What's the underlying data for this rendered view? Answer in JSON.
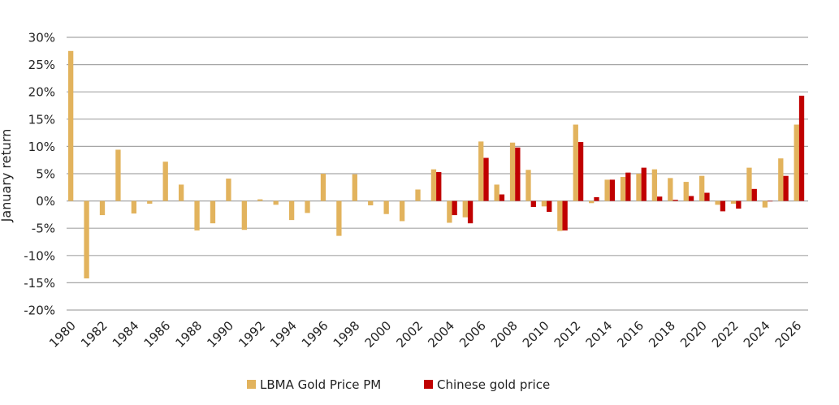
{
  "chart_data": {
    "type": "bar",
    "title": "",
    "xlabel": "",
    "ylabel": "January return",
    "ylim": [
      -20,
      30
    ],
    "y_tick_values": [
      -20,
      -15,
      -10,
      -5,
      0,
      5,
      10,
      15,
      20,
      25,
      30
    ],
    "y_tick_labels": [
      "-20%",
      "-15%",
      "-10%",
      "-5%",
      "0%",
      "5%",
      "10%",
      "15%",
      "20%",
      "25%",
      "30%"
    ],
    "grid": true,
    "legend_position": "bottom-center",
    "x_tick_labels": [
      "1980",
      "1982",
      "1984",
      "1986",
      "1988",
      "1990",
      "1992",
      "1994",
      "1996",
      "1998",
      "2000",
      "2002",
      "2004",
      "2006",
      "2008",
      "2010",
      "2012",
      "2014",
      "2016",
      "2018",
      "2020",
      "2022",
      "2024",
      "2026"
    ],
    "categories": [
      "1980",
      "1981",
      "1982",
      "1983",
      "1984",
      "1985",
      "1986",
      "1987",
      "1988",
      "1989",
      "1990",
      "1991",
      "1992",
      "1993",
      "1994",
      "1995",
      "1996",
      "1997",
      "1998",
      "1999",
      "2000",
      "2001",
      "2002",
      "2003",
      "2004",
      "2005",
      "2006",
      "2007",
      "2008",
      "2009",
      "2010",
      "2011",
      "2012",
      "2013",
      "2014",
      "2015",
      "2016",
      "2017",
      "2018",
      "2019",
      "2020",
      "2021",
      "2022",
      "2023",
      "2024",
      "2025",
      "2026"
    ],
    "series": [
      {
        "name": "LBMA Gold Price PM",
        "color": "#E2B35D",
        "values": [
          27.5,
          -14.2,
          -2.6,
          9.4,
          -2.3,
          -0.5,
          7.2,
          3.0,
          -5.4,
          -4.1,
          4.1,
          -5.3,
          0.3,
          -0.7,
          -3.5,
          -2.2,
          5.0,
          -6.4,
          4.9,
          -0.8,
          -2.4,
          -3.7,
          2.1,
          5.8,
          -4.0,
          -3.0,
          10.9,
          3.0,
          10.7,
          5.7,
          -1.0,
          -5.5,
          14.0,
          -0.4,
          3.9,
          4.4,
          5.0,
          5.8,
          4.2,
          3.5,
          4.6,
          -0.7,
          -0.5,
          6.1,
          -1.2,
          7.8,
          14.0
        ]
      },
      {
        "name": "Chinese gold price",
        "color": "#C00000",
        "values": [
          null,
          null,
          null,
          null,
          null,
          null,
          null,
          null,
          null,
          null,
          null,
          null,
          null,
          null,
          null,
          null,
          null,
          null,
          null,
          null,
          null,
          null,
          null,
          5.3,
          -2.6,
          -4.1,
          7.9,
          1.2,
          9.8,
          -1.1,
          -2.0,
          -5.4,
          10.8,
          0.7,
          3.9,
          5.2,
          6.1,
          0.8,
          0.2,
          0.9,
          1.5,
          -1.9,
          -1.4,
          2.2,
          0.0,
          4.6,
          19.3
        ]
      }
    ]
  }
}
